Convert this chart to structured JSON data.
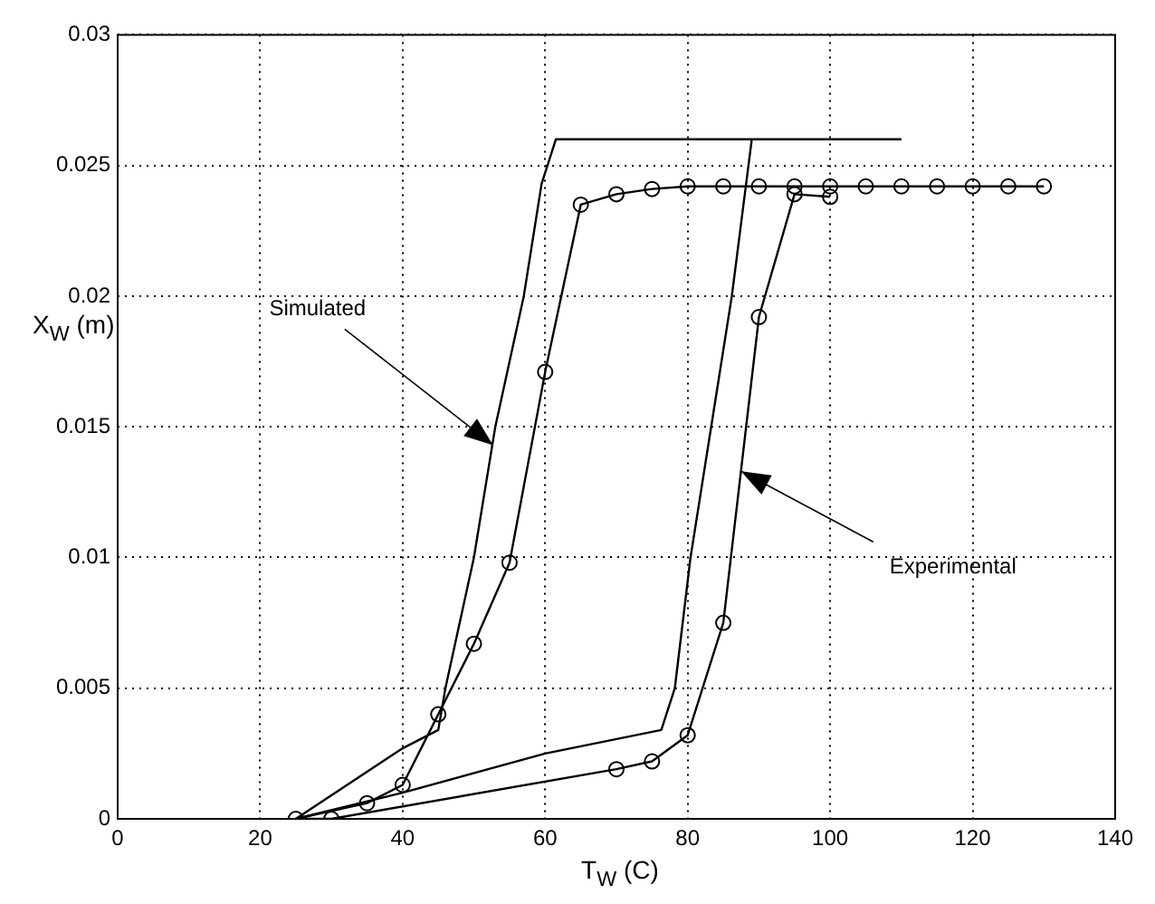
{
  "chart_data": {
    "type": "line",
    "xlabel": "T$_{W}$ (C)",
    "ylabel": "X$_{W}$ (m)",
    "xlim": [
      0,
      140
    ],
    "xticks": [
      0,
      20,
      40,
      60,
      80,
      100,
      120,
      140
    ],
    "ylim": [
      0,
      0.03
    ],
    "yticks": [
      0,
      0.005,
      0.01,
      0.015,
      0.02,
      0.025,
      0.03
    ],
    "grid": true,
    "series": [
      {
        "color": "#000000",
        "marker": "none",
        "x": [
          110,
          61.5,
          59.5,
          57,
          53,
          50,
          46,
          45,
          40,
          25,
          40,
          60,
          76.3,
          78.2,
          80.4,
          83.3,
          86.2,
          89
        ],
        "values": [
          0.026,
          0.026,
          0.0243,
          0.02,
          0.015,
          0.01,
          0.005,
          0.0034,
          0.0027,
          0,
          0.001,
          0.0025,
          0.0034,
          0.005,
          0.01,
          0.015,
          0.02,
          0.026
        ]
      },
      {
        "color": "#000000",
        "marker": "circle",
        "x": [
          130,
          125,
          120,
          115,
          110,
          105,
          100,
          95,
          90,
          85,
          80,
          75,
          70,
          65,
          60,
          55,
          50,
          45,
          40,
          35,
          25,
          30,
          70,
          75,
          80,
          85,
          90,
          95,
          100
        ],
        "values": [
          0.0242,
          0.0242,
          0.0242,
          0.0242,
          0.0242,
          0.0242,
          0.0242,
          0.0242,
          0.0242,
          0.0242,
          0.0242,
          0.0241,
          0.0239,
          0.0235,
          0.0171,
          0.0098,
          0.0067,
          0.004,
          0.0013,
          0.0006,
          0,
          0,
          0.0019,
          0.0022,
          0.0032,
          0.0075,
          0.0192,
          0.0239,
          0.0238
        ]
      }
    ],
    "annotations": [
      {
        "text": "Simulated",
        "x": 52.7,
        "y": 0.0143
      },
      {
        "text": "Experimental",
        "x": 87.5,
        "y": 0.0133
      }
    ]
  }
}
